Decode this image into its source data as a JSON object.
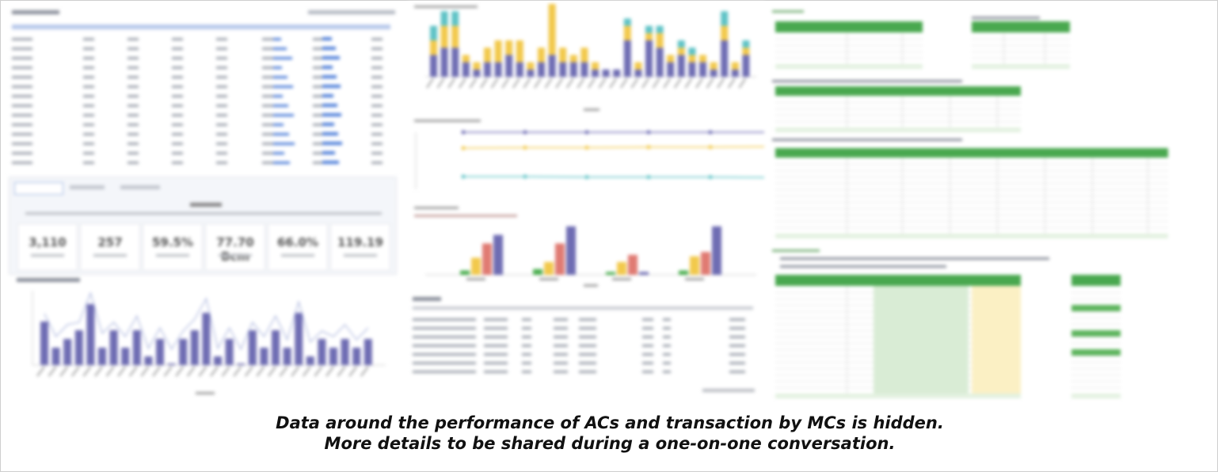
{
  "caption": {
    "line1": "Data around the performance of ACs and transaction by MCs is hidden.",
    "line2": "More details to be shared during a one-on-one conversation."
  },
  "colors": {
    "purple": "#6f6db3",
    "yellow": "#f2c94c",
    "teal": "#5fc3c6",
    "red": "#e07b73",
    "green": "#4caf50",
    "light_green": "#d9ecd5",
    "light_yellow": "#fbf0c4",
    "blue": "#4a7bd8"
  },
  "left_top_table": {
    "rows": 14
  },
  "kpi_cards": [
    {
      "value": "3,110"
    },
    {
      "value": "257"
    },
    {
      "value": "59.5%"
    },
    {
      "value": "77.70 Bcm"
    },
    {
      "value": "66.0%"
    },
    {
      "value": "119.19"
    }
  ],
  "left_bars": [
    5,
    2,
    3,
    4,
    7,
    2,
    4,
    2,
    4,
    1,
    3,
    0,
    3,
    4,
    6,
    1,
    3,
    0,
    4,
    2,
    4,
    2,
    6,
    1,
    3,
    2,
    3,
    2,
    3
  ],
  "stacked_bars": [
    [
      3,
      2,
      2
    ],
    [
      4,
      3,
      2
    ],
    [
      4,
      3,
      2
    ],
    [
      2,
      1,
      0
    ],
    [
      1,
      1,
      0
    ],
    [
      2,
      2,
      0
    ],
    [
      2,
      3,
      0
    ],
    [
      3,
      2,
      0
    ],
    [
      2,
      3,
      0
    ],
    [
      1,
      1,
      0
    ],
    [
      2,
      2,
      0
    ],
    [
      3,
      7,
      0
    ],
    [
      2,
      2,
      0
    ],
    [
      2,
      1,
      0
    ],
    [
      2,
      2,
      0
    ],
    [
      1,
      1,
      0
    ],
    [
      1,
      0,
      0
    ],
    [
      1,
      0,
      0
    ],
    [
      5,
      2,
      1
    ],
    [
      1,
      1,
      0
    ],
    [
      5,
      1,
      1
    ],
    [
      4,
      2,
      1
    ],
    [
      2,
      1,
      0
    ],
    [
      3,
      1,
      1
    ],
    [
      2,
      1,
      1
    ],
    [
      2,
      1,
      0
    ],
    [
      1,
      1,
      0
    ],
    [
      5,
      2,
      2
    ],
    [
      1,
      1,
      0
    ],
    [
      3,
      1,
      1
    ]
  ],
  "line_series": [
    [
      4,
      4,
      4,
      4,
      4,
      4
    ],
    [
      3,
      3.1,
      3.1,
      3.2,
      3.2,
      3.3
    ],
    [
      1.2,
      1.2,
      1.1,
      1.1,
      1.1,
      1.0
    ]
  ],
  "grouped_bars": [
    [
      0.3,
      1.2,
      2.2,
      2.8
    ],
    [
      0.4,
      0.9,
      2.2,
      3.4
    ],
    [
      0.2,
      0.9,
      1.4,
      0.2
    ],
    [
      0.3,
      1.3,
      1.6,
      3.4
    ]
  ],
  "mid_table": {
    "rows": 7
  },
  "right_tables": {
    "count": 6
  }
}
